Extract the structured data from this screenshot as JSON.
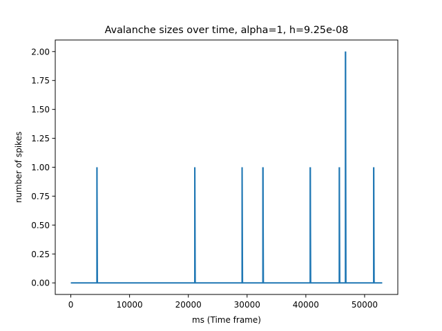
{
  "chart_data": {
    "type": "line",
    "title": "Avalanche sizes over time, alpha=1, h=9.25e-08",
    "xlabel": "ms (Time frame)",
    "ylabel": "number of spikes",
    "xlim": [
      -2650,
      55650
    ],
    "ylim": [
      -0.1,
      2.1
    ],
    "x_ticks": [
      0,
      10000,
      20000,
      30000,
      40000,
      50000
    ],
    "x_tick_labels": [
      "0",
      "10000",
      "20000",
      "30000",
      "40000",
      "50000"
    ],
    "y_ticks": [
      0,
      0.25,
      0.5,
      0.75,
      1.0,
      1.25,
      1.5,
      1.75,
      2.0
    ],
    "y_tick_labels": [
      "0.00",
      "0.25",
      "0.50",
      "0.75",
      "1.00",
      "1.25",
      "1.50",
      "1.75",
      "2.00"
    ],
    "grid": false,
    "series_color": "#1f77b4",
    "x_range": [
      0,
      53000
    ],
    "spikes": [
      {
        "x": 4450,
        "y": 1
      },
      {
        "x": 21100,
        "y": 1
      },
      {
        "x": 29150,
        "y": 1
      },
      {
        "x": 32700,
        "y": 1
      },
      {
        "x": 40750,
        "y": 1
      },
      {
        "x": 45700,
        "y": 1
      },
      {
        "x": 46750,
        "y": 2
      },
      {
        "x": 51550,
        "y": 1
      }
    ]
  }
}
